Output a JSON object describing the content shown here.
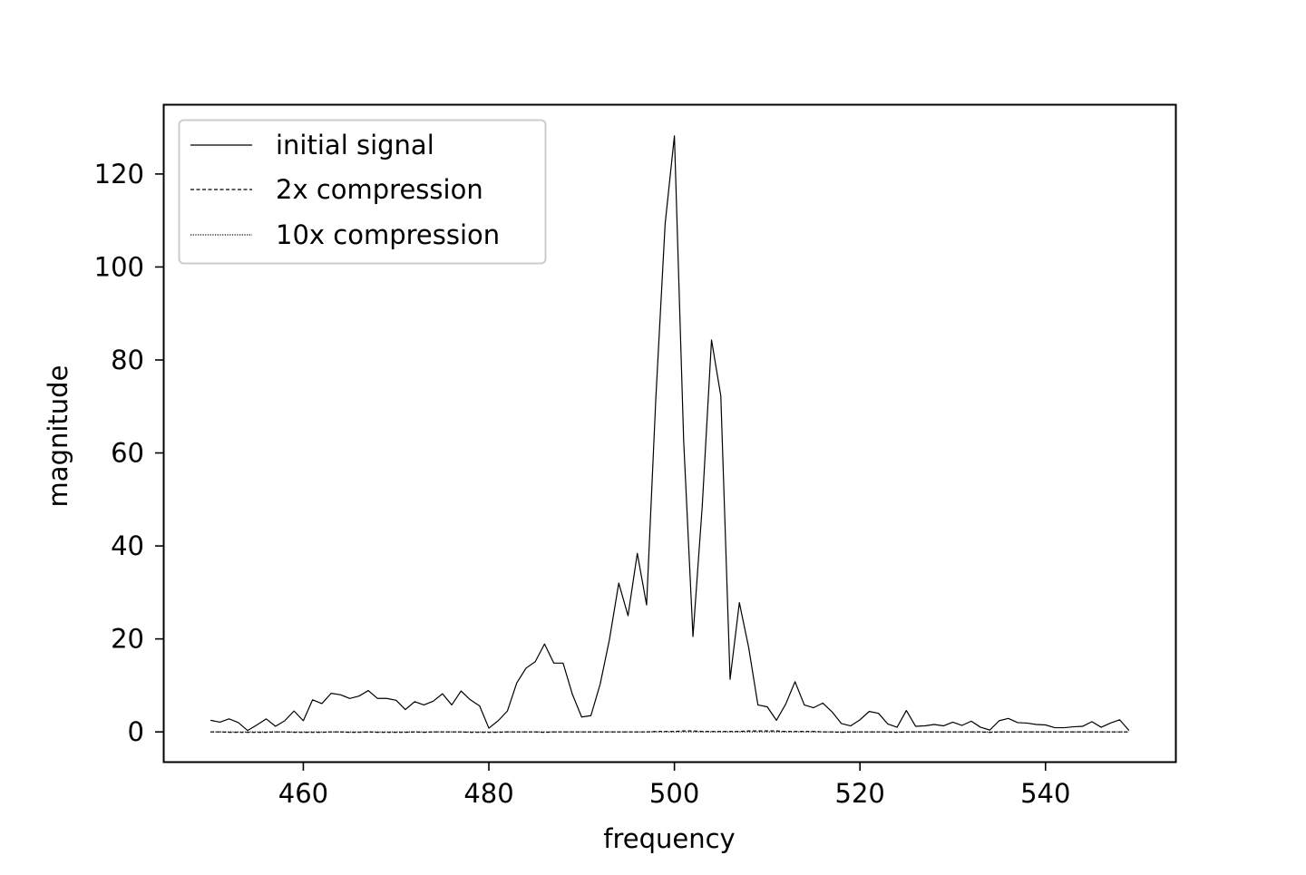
{
  "chart_data": {
    "type": "line",
    "title": "",
    "xlabel": "frequency",
    "ylabel": "magnitude",
    "xlim": [
      445,
      554
    ],
    "ylim": [
      -6.4,
      134.8
    ],
    "x_ticks": [
      460,
      480,
      500,
      520,
      540
    ],
    "y_ticks": [
      0,
      20,
      40,
      60,
      80,
      100,
      120
    ],
    "grid": false,
    "legend_position": "top-left",
    "x": [
      450,
      451,
      452,
      453,
      454,
      455,
      456,
      457,
      458,
      459,
      460,
      461,
      462,
      463,
      464,
      465,
      466,
      467,
      468,
      469,
      470,
      471,
      472,
      473,
      474,
      475,
      476,
      477,
      478,
      479,
      480,
      481,
      482,
      483,
      484,
      485,
      486,
      487,
      488,
      489,
      490,
      491,
      492,
      493,
      494,
      495,
      496,
      497,
      498,
      499,
      500,
      501,
      502,
      503,
      504,
      505,
      506,
      507,
      508,
      509,
      510,
      511,
      512,
      513,
      514,
      515,
      516,
      517,
      518,
      519,
      520,
      521,
      522,
      523,
      524,
      525,
      526,
      527,
      528,
      529,
      530,
      531,
      532,
      533,
      534,
      535,
      536,
      537,
      538,
      539,
      540,
      541,
      542,
      543,
      544,
      545,
      546,
      547,
      548,
      549
    ],
    "series": [
      {
        "name": "initial signal",
        "style": "solid",
        "color": "#000000",
        "values": [
          2.5,
          2.1,
          2.8,
          2.0,
          0.3,
          1.5,
          2.8,
          1.2,
          2.4,
          4.5,
          2.4,
          6.9,
          6.1,
          8.3,
          8.0,
          7.2,
          7.7,
          8.9,
          7.2,
          7.2,
          6.8,
          4.8,
          6.5,
          5.8,
          6.6,
          8.2,
          5.8,
          8.8,
          6.9,
          5.6,
          0.8,
          2.4,
          4.5,
          10.5,
          13.7,
          15.1,
          18.9,
          14.8,
          14.8,
          8.1,
          3.2,
          3.5,
          10.3,
          19.9,
          32.0,
          25.0,
          38.4,
          27.3,
          71.9,
          109.3,
          128.2,
          62.5,
          20.5,
          48.6,
          84.3,
          72.3,
          11.3,
          27.8,
          18.2,
          5.8,
          5.4,
          2.5,
          6.0,
          10.8,
          5.8,
          5.2,
          6.2,
          4.3,
          1.8,
          1.3,
          2.6,
          4.4,
          4.0,
          1.7,
          1.0,
          4.6,
          1.2,
          1.3,
          1.6,
          1.3,
          2.1,
          1.4,
          2.3,
          1.0,
          0.4,
          2.4,
          2.9,
          2.0,
          1.9,
          1.6,
          1.5,
          0.9,
          0.9,
          1.1,
          1.2,
          2.2,
          1.0,
          1.9,
          2.6,
          0.3
        ]
      },
      {
        "name": "2x compression",
        "style": "dashed",
        "color": "#000000",
        "values": [
          0.0,
          0.0,
          -0.1,
          -0.1,
          -0.1,
          -0.1,
          -0.1,
          0.0,
          0.0,
          -0.1,
          -0.1,
          -0.1,
          -0.1,
          0.0,
          0.0,
          -0.1,
          -0.1,
          0.0,
          -0.1,
          -0.1,
          -0.1,
          -0.1,
          0.0,
          -0.1,
          0.0,
          0.0,
          0.0,
          0.0,
          -0.1,
          -0.1,
          -0.1,
          -0.1,
          0.0,
          0.0,
          0.0,
          0.0,
          -0.1,
          0.0,
          0.0,
          0.0,
          0.0,
          0.0,
          0.0,
          0.0,
          0.0,
          0.0,
          0.0,
          0.0,
          0.1,
          0.1,
          0.1,
          0.2,
          0.2,
          0.1,
          0.1,
          0.1,
          0.1,
          0.1,
          0.2,
          0.2,
          0.2,
          0.2,
          0.1,
          0.1,
          0.1,
          0.1,
          0.0,
          0.0,
          -0.1,
          0.0,
          0.0,
          0.0,
          0.0,
          0.0,
          -0.1,
          0.0,
          0.0,
          0.0,
          0.0,
          0.0,
          0.0,
          0.0,
          0.0,
          0.0,
          -0.1,
          0.0,
          0.0,
          0.0,
          0.0,
          0.0,
          0.0,
          0.0,
          0.0,
          0.0,
          0.0,
          0.0,
          0.0,
          0.0,
          0.0,
          0.0
        ]
      },
      {
        "name": "10x compression",
        "style": "dotted",
        "color": "#000000",
        "values": [
          0.0,
          0.0,
          0.0,
          0.0,
          0.0,
          0.0,
          0.0,
          0.0,
          0.0,
          0.0,
          0.0,
          0.0,
          0.0,
          0.0,
          0.0,
          0.0,
          0.0,
          0.0,
          0.0,
          0.0,
          0.0,
          0.0,
          0.0,
          0.0,
          0.0,
          0.0,
          0.0,
          0.0,
          0.0,
          0.0,
          0.0,
          0.0,
          0.0,
          0.0,
          0.0,
          0.0,
          0.0,
          0.0,
          0.0,
          0.0,
          0.0,
          0.0,
          0.0,
          0.0,
          0.0,
          0.0,
          0.0,
          0.0,
          0.0,
          0.0,
          0.0,
          0.0,
          0.0,
          0.0,
          0.0,
          0.0,
          0.0,
          0.0,
          0.0,
          0.0,
          0.0,
          0.0,
          0.0,
          0.0,
          0.0,
          0.0,
          0.0,
          0.0,
          0.0,
          0.0,
          0.0,
          0.0,
          0.0,
          0.0,
          0.0,
          0.0,
          0.0,
          0.0,
          0.0,
          0.0,
          0.0,
          0.0,
          0.0,
          0.0,
          0.0,
          0.0,
          0.0,
          0.0,
          0.0,
          0.0,
          0.0,
          0.0,
          0.0,
          0.0,
          0.0,
          0.0,
          0.0,
          0.0,
          0.0,
          0.0
        ]
      }
    ]
  }
}
